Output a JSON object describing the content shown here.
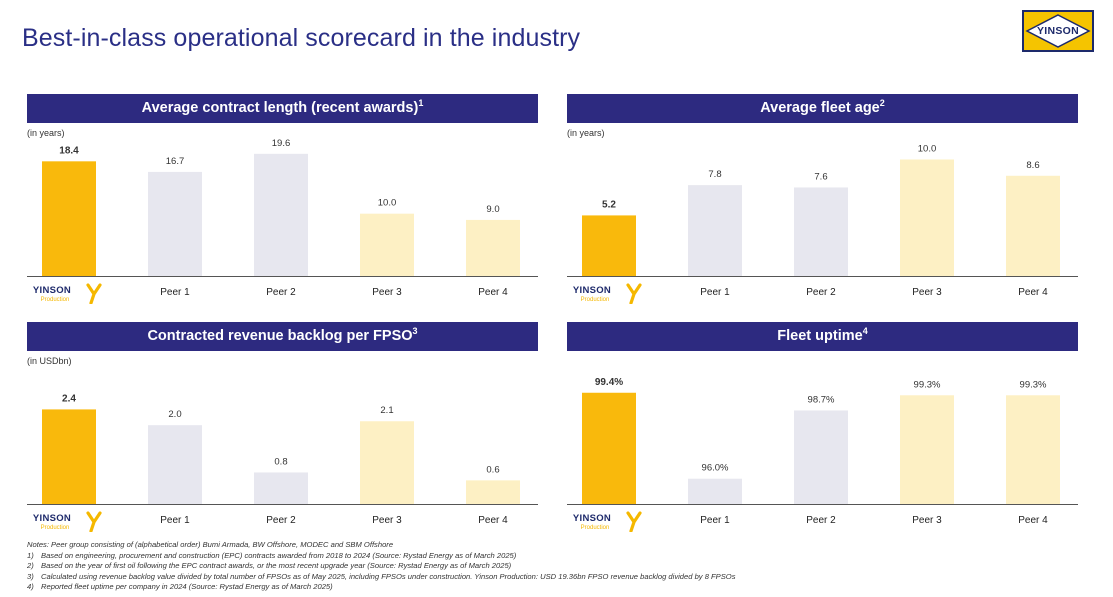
{
  "page": {
    "title": "Best-in-class operational scorecard in the industry",
    "logo_text": "YINSON",
    "logo_colors": {
      "yellow": "#f5c400",
      "navy": "#1d2a6b"
    }
  },
  "colors": {
    "header_bg": "#2d2a80",
    "yinson_bar": "#f9b90c",
    "peer_grey": "#e7e7ef",
    "peer_light_yellow": "#fdf0c4",
    "logo_text": "#1e2a6b",
    "logo_accent": "#f5b800"
  },
  "yinson_label": {
    "main": "YINSON",
    "sub": "Production"
  },
  "chart_data": [
    {
      "type": "bar",
      "title": "Average contract length (recent awards)",
      "title_sup": "1",
      "unit": "(in years)",
      "categories": [
        "YINSON Production",
        "Peer 1",
        "Peer 2",
        "Peer 3",
        "Peer 4"
      ],
      "values": [
        18.4,
        16.7,
        19.6,
        10.0,
        9.0
      ],
      "labels": [
        "18.4",
        "16.7",
        "19.6",
        "10.0",
        "9.0"
      ],
      "ylim": [
        0,
        21.5
      ],
      "grid": false,
      "bar_colors": [
        "yinson",
        "grey",
        "grey",
        "light_yellow",
        "light_yellow"
      ]
    },
    {
      "type": "bar",
      "title": "Average fleet age",
      "title_sup": "2",
      "unit": "(in years)",
      "categories": [
        "YINSON Production",
        "Peer 1",
        "Peer 2",
        "Peer 3",
        "Peer 4"
      ],
      "values": [
        5.2,
        7.8,
        7.6,
        10.0,
        8.6
      ],
      "labels": [
        "5.2",
        "7.8",
        "7.6",
        "10.0",
        "8.6"
      ],
      "ylim": [
        0,
        11.5
      ],
      "grid": false,
      "bar_colors": [
        "yinson",
        "grey",
        "grey",
        "light_yellow",
        "light_yellow"
      ]
    },
    {
      "type": "bar",
      "title": "Contracted revenue backlog per FPSO",
      "title_sup": "3",
      "unit": "(in USDbn)",
      "categories": [
        "YINSON Production",
        "Peer 1",
        "Peer 2",
        "Peer 3",
        "Peer 4"
      ],
      "values": [
        2.4,
        2.0,
        0.8,
        2.1,
        0.6
      ],
      "labels": [
        "2.4",
        "2.0",
        "0.8",
        "2.1",
        "0.6"
      ],
      "ylim": [
        0,
        3.4
      ],
      "grid": false,
      "bar_colors": [
        "yinson",
        "grey",
        "grey",
        "light_yellow",
        "light_yellow"
      ]
    },
    {
      "type": "bar",
      "title": "Fleet uptime",
      "title_sup": "4",
      "unit": "",
      "categories": [
        "YINSON Production",
        "Peer 1",
        "Peer 2",
        "Peer 3",
        "Peer 4"
      ],
      "values": [
        99.4,
        96.0,
        98.7,
        99.3,
        99.3
      ],
      "labels": [
        "99.4%",
        "96.0%",
        "98.7%",
        "99.3%",
        "99.3%"
      ],
      "ylim": [
        95.0,
        100.3
      ],
      "grid": false,
      "bar_colors": [
        "yinson",
        "grey",
        "grey",
        "light_yellow",
        "light_yellow"
      ]
    }
  ],
  "notes": {
    "intro": "Notes: Peer group consisting of (alphabetical order) Bumi Armada, BW Offshore, MODEC and SBM Offshore",
    "items": [
      {
        "num": "1)",
        "text": "Based on engineering, procurement and construction (EPC) contracts awarded from 2018 to 2024 (Source: Rystad Energy as of March 2025)"
      },
      {
        "num": "2)",
        "text": "Based on the year of first oil following the EPC contract awards, or the most recent upgrade year (Source: Rystad Energy as of March 2025)"
      },
      {
        "num": "3)",
        "text": "Calculated using revenue backlog value divided by total number of FPSOs as of May 2025, including FPSOs under construction. Yinson Production: USD 19.36bn FPSO revenue backlog divided by 8 FPSOs"
      },
      {
        "num": "4)",
        "text": "Reported fleet uptime per company in 2024 (Source: Rystad Energy as of March 2025)"
      }
    ]
  }
}
